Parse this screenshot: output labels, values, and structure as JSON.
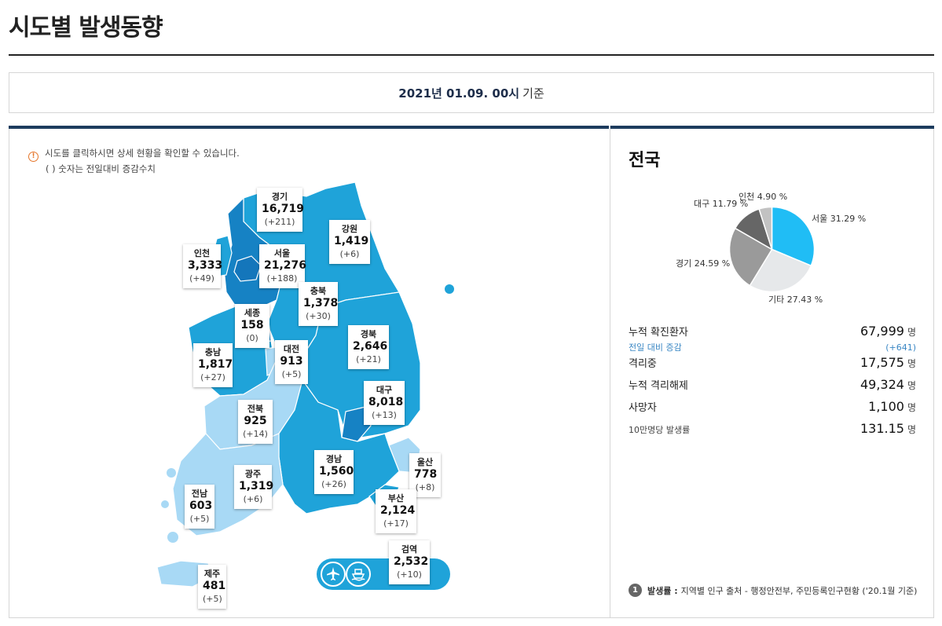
{
  "header": {
    "title": "시도별 발생동향"
  },
  "date": {
    "value": "2021년 01.09. 00시",
    "suffix": "기준"
  },
  "notice": {
    "line1": "시도를 클릭하시면 상세 현황을 확인할 수 있습니다.",
    "line2": "( ) 숫자는 전일대비 증감수치"
  },
  "regions": {
    "gyeonggi": {
      "name": "경기",
      "count": "16,719",
      "change": "(+211)"
    },
    "gangwon": {
      "name": "강원",
      "count": "1,419",
      "change": "(+6)"
    },
    "incheon": {
      "name": "인천",
      "count": "3,333",
      "change": "(+49)"
    },
    "seoul": {
      "name": "서울",
      "count": "21,276",
      "change": "(+188)"
    },
    "chungbuk": {
      "name": "충북",
      "count": "1,378",
      "change": "(+30)"
    },
    "sejong": {
      "name": "세종",
      "count": "158",
      "change": "(0)"
    },
    "gyeongbuk": {
      "name": "경북",
      "count": "2,646",
      "change": "(+21)"
    },
    "chungnam": {
      "name": "충남",
      "count": "1,817",
      "change": "(+27)"
    },
    "daejeon": {
      "name": "대전",
      "count": "913",
      "change": "(+5)"
    },
    "daegu": {
      "name": "대구",
      "count": "8,018",
      "change": "(+13)"
    },
    "jeonbuk": {
      "name": "전북",
      "count": "925",
      "change": "(+14)"
    },
    "ulsan": {
      "name": "울산",
      "count": "778",
      "change": "(+8)"
    },
    "gyeongnam": {
      "name": "경남",
      "count": "1,560",
      "change": "(+26)"
    },
    "gwangju": {
      "name": "광주",
      "count": "1,319",
      "change": "(+6)"
    },
    "jeonnam": {
      "name": "전남",
      "count": "603",
      "change": "(+5)"
    },
    "busan": {
      "name": "부산",
      "count": "2,124",
      "change": "(+17)"
    },
    "quarantine": {
      "name": "검역",
      "count": "2,532",
      "change": "(+10)"
    },
    "jeju": {
      "name": "제주",
      "count": "481",
      "change": "(+5)"
    }
  },
  "summary": {
    "title": "전국",
    "cumulative_label": "누적 확진환자",
    "cumulative_value": "67,999",
    "unit": "명",
    "daily_label": "전일 대비 증감",
    "daily_value": "(+641)",
    "isolating_label": "격리중",
    "isolating_value": "17,575",
    "released_label": "누적 격리해제",
    "released_value": "49,324",
    "deaths_label": "사망자",
    "deaths_value": "1,100",
    "rate_label": "10만명당 발생률",
    "rate_value": "131.15"
  },
  "chart_data": {
    "type": "pie",
    "slices": [
      {
        "label": "서울 31.29 %",
        "name": "서울",
        "value": 31.29,
        "color": "#20bdf5"
      },
      {
        "label": "기타 27.43 %",
        "name": "기타",
        "value": 27.43,
        "color": "#e6e8ea"
      },
      {
        "label": "경기 24.59 %",
        "name": "경기",
        "value": 24.59,
        "color": "#9a9a9a"
      },
      {
        "label": "대구 11.79 %",
        "name": "대구",
        "value": 11.79,
        "color": "#666666"
      },
      {
        "label": "인천 4.90 %",
        "name": "인천",
        "value": 4.9,
        "color": "#c2c2c2"
      }
    ]
  },
  "footnote": {
    "badge": "1",
    "bold": "발생률 :",
    "text": "지역별 인구 출처 - 행정안전부, 주민등록인구현황 ('20.1월 기준)"
  },
  "icons": [
    "info-icon",
    "airplane-icon",
    "ship-icon"
  ],
  "colors": {
    "navy": "#1d3c5e",
    "accent_blue": "#3a87c4",
    "map_dark": "#1682c4",
    "map_mid": "#1fa3d9",
    "map_light": "#a8d9f5"
  }
}
